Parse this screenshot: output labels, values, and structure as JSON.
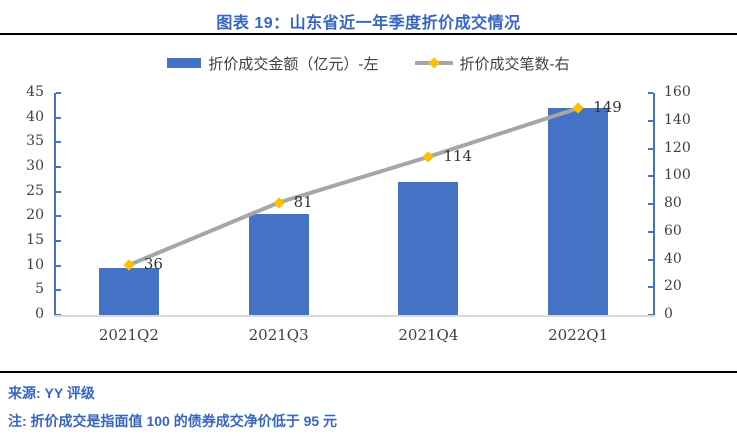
{
  "header": {
    "title": "图表 19：山东省近一年季度折价成交情况"
  },
  "legend": {
    "items": [
      {
        "label": "折价成交金额（亿元）-左",
        "swatch": "bar",
        "color": "#4472C4"
      },
      {
        "label": "折价成交笔数-右",
        "swatch": "line",
        "color": "#A6A6A6",
        "marker_color": "#FFC000"
      }
    ]
  },
  "chart_data": {
    "type": "bar",
    "subtype": "combo-bar-line-dual-axis",
    "title": "图表 19：山东省近一年季度折价成交情况",
    "categories": [
      "2021Q2",
      "2021Q3",
      "2021Q4",
      "2022Q1"
    ],
    "series": [
      {
        "name": "折价成交金额（亿元）-左",
        "type": "bar",
        "axis": "left",
        "color": "#4472C4",
        "values": [
          9.6,
          20.5,
          27,
          42
        ]
      },
      {
        "name": "折价成交笔数-右",
        "type": "line",
        "axis": "right",
        "color": "#A6A6A6",
        "marker": "diamond",
        "marker_color": "#FFC000",
        "values": [
          36,
          81,
          114,
          149
        ],
        "data_labels": [
          "36",
          "81",
          "114",
          "149"
        ]
      }
    ],
    "left_axis": {
      "min": 0,
      "max": 45,
      "step": 5,
      "ticks": [
        "0",
        "5",
        "10",
        "15",
        "20",
        "25",
        "30",
        "35",
        "40",
        "45"
      ]
    },
    "right_axis": {
      "min": 0,
      "max": 160,
      "step": 20,
      "ticks": [
        "0",
        "20",
        "40",
        "60",
        "80",
        "100",
        "120",
        "140",
        "160"
      ]
    },
    "grid": false,
    "legend_position": "top",
    "axis_line_color": "#4472C4",
    "baseline_color": "#D9D9D9",
    "tick_label_color": "#404040"
  },
  "footer": {
    "source": "来源: YY 评级",
    "note": "注: 折价成交是指面值 100 的债券成交净价低于 95 元"
  }
}
